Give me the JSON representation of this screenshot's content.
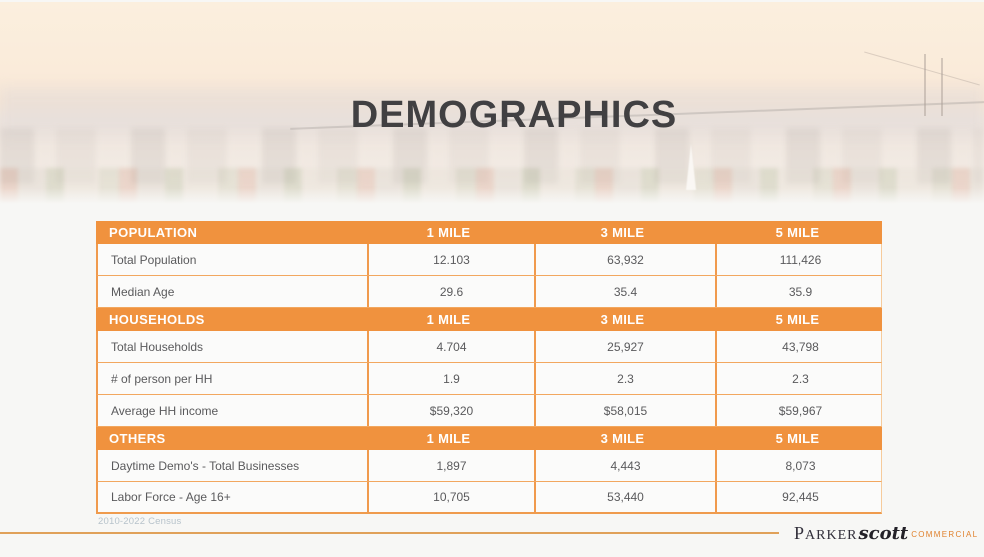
{
  "slide": {
    "title": "DEMOGRAPHICS",
    "source_note": "2010-2022 Census",
    "logo": {
      "name": "PARKER",
      "script": "scott",
      "suffix": "COMMERCIAL"
    }
  },
  "table": {
    "columns": [
      "1 MILE",
      "3 MILE",
      "5 MILE"
    ],
    "sections": [
      {
        "header": "POPULATION",
        "rows": [
          {
            "label": "Total Population",
            "values": [
              "12.103",
              "63,932",
              "111,426"
            ]
          },
          {
            "label": "Median Age",
            "values": [
              "29.6",
              "35.4",
              "35.9"
            ]
          }
        ]
      },
      {
        "header": "HOUSEHOLDS",
        "rows": [
          {
            "label": "Total Households",
            "values": [
              "4.704",
              "25,927",
              "43,798"
            ]
          },
          {
            "label": "# of person per HH",
            "values": [
              "1.9",
              "2.3",
              "2.3"
            ]
          },
          {
            "label": "Average HH income",
            "values": [
              "$59,320",
              "$58,015",
              "$59,967"
            ]
          }
        ]
      },
      {
        "header": "OTHERS",
        "rows": [
          {
            "label": "Daytime Demo's - Total Businesses",
            "values": [
              "1,897",
              "4,443",
              "8,073"
            ]
          },
          {
            "label": "Labor Force - Age 16+",
            "values": [
              "10,705",
              "53,440",
              "92,445"
            ]
          }
        ]
      }
    ]
  },
  "colors": {
    "accent_orange": "#F0923E",
    "title_gray": "#414042",
    "row_text": "#5A5A5C",
    "source_text": "#B7C3CB",
    "logo_dark": "#32303B",
    "logo_orange": "#E0822E"
  }
}
